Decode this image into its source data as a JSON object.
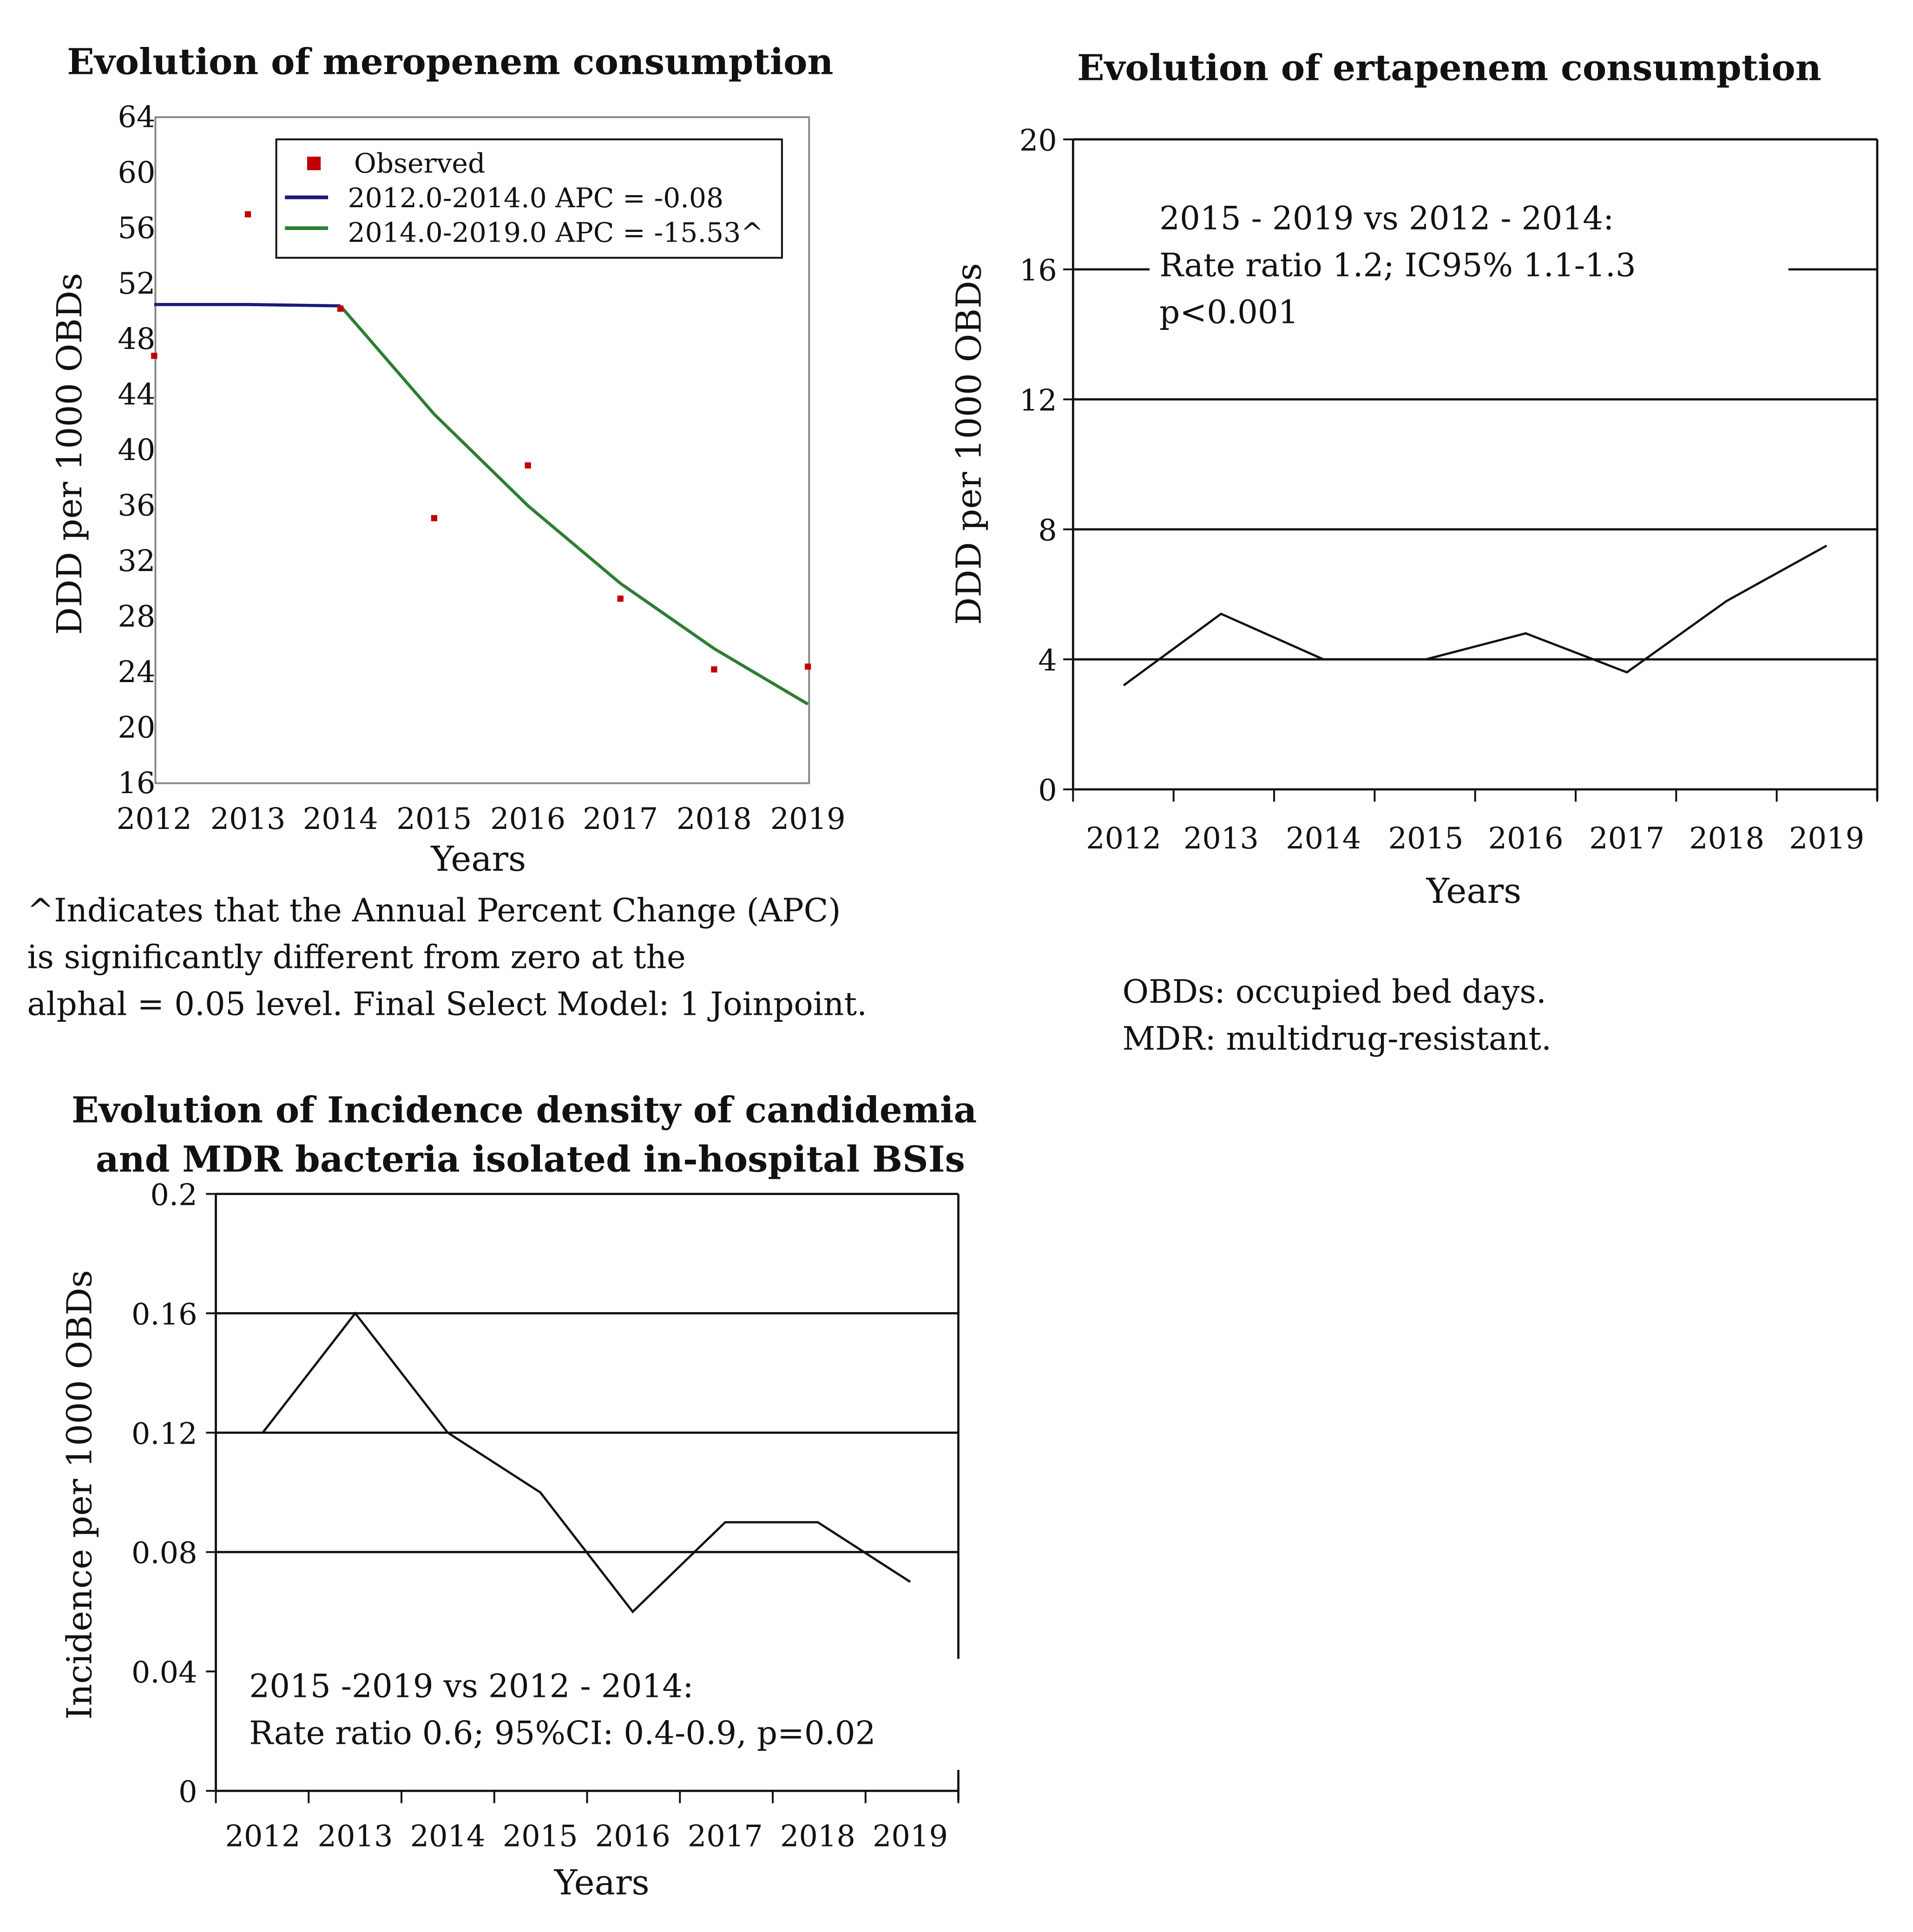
{
  "colors": {
    "observed": "#c00000",
    "segment1": "#1a1a7a",
    "segment2": "#2e7d32",
    "line": "#111111"
  },
  "chart_data": [
    {
      "id": "meropenem",
      "type": "scatter",
      "title": "Evolution of meropenem consumption",
      "xlabel": "Years",
      "ylabel": "DDD per 1000 OBDs",
      "x": [
        2012,
        2013,
        2014,
        2015,
        2016,
        2017,
        2018,
        2019
      ],
      "x_tick_labels": [
        "2012",
        "2013",
        "2014",
        "2015",
        "2016",
        "2017",
        "2018",
        "2019"
      ],
      "ylim": [
        16,
        64
      ],
      "y_ticks": [
        16,
        20,
        24,
        28,
        32,
        36,
        40,
        44,
        48,
        52,
        56,
        60,
        64
      ],
      "y_tick_labels": [
        "16",
        "20",
        "24",
        "28",
        "32",
        "36",
        "40",
        "44",
        "48",
        "52",
        "56",
        "60",
        "64"
      ],
      "series": [
        {
          "name": "Observed",
          "kind": "points",
          "values": [
            46.8,
            57.0,
            50.2,
            35.1,
            38.9,
            29.3,
            24.2,
            24.4
          ]
        },
        {
          "name": "2012.0-2014.0 APC = -0.08",
          "kind": "line",
          "x": [
            2012,
            2013,
            2014
          ],
          "values": [
            50.5,
            50.5,
            50.4
          ]
        },
        {
          "name": "2014.0-2019.0 APC = -15.53^",
          "kind": "line",
          "x": [
            2014,
            2015,
            2016,
            2017,
            2018,
            2019
          ],
          "values": [
            50.4,
            42.6,
            36.0,
            30.4,
            25.7,
            21.7
          ]
        }
      ],
      "legend": {
        "position": "top-right",
        "entries": [
          "Observed",
          "2012.0-2014.0 APC = -0.08",
          "2014.0-2019.0 APC = -15.53^"
        ]
      },
      "footnote": [
        "^Indicates that the Annual Percent Change (APC)",
        "is significantly different from zero at the",
        "alphal = 0.05 level. Final Select Model: 1 Joinpoint."
      ]
    },
    {
      "id": "ertapenem",
      "type": "line",
      "title": "Evolution of ertapenem consumption",
      "xlabel": "Years",
      "ylabel": "DDD per 1000 OBDs",
      "x_tick_labels": [
        "2012",
        "2013",
        "2014",
        "2015",
        "2016",
        "2017",
        "2018",
        "2019"
      ],
      "ylim": [
        0,
        20
      ],
      "y_ticks": [
        0,
        4,
        8,
        12,
        16,
        20
      ],
      "y_tick_labels": [
        "0",
        "4",
        "8",
        "12",
        "16",
        "20"
      ],
      "gridlines": [
        4,
        8,
        12,
        16
      ],
      "series": [
        {
          "name": "Ertapenem",
          "values": [
            3.2,
            5.4,
            4.0,
            4.0,
            4.8,
            3.6,
            5.8,
            7.5
          ]
        }
      ],
      "annotation": [
        "2015 - 2019 vs 2012 - 2014:",
        "Rate ratio 1.2; IC95% 1.1-1.3",
        "p<0.001"
      ]
    },
    {
      "id": "candidemia",
      "type": "line",
      "title": [
        "Evolution of Incidence density of candidemia",
        "and MDR bacteria isolated in-hospital BSIs"
      ],
      "xlabel": "Years",
      "ylabel": "Incidence per 1000 OBDs",
      "x_tick_labels": [
        "2012",
        "2013",
        "2014",
        "2015",
        "2016",
        "2017",
        "2018",
        "2019"
      ],
      "ylim": [
        0,
        0.2
      ],
      "y_ticks": [
        0,
        0.04,
        0.08,
        0.12,
        0.16,
        0.2
      ],
      "y_tick_labels": [
        "0",
        "0.04",
        "0.08",
        "0.12",
        "0.16",
        "0.2"
      ],
      "gridlines": [
        0.08,
        0.12,
        0.16
      ],
      "series": [
        {
          "name": "Incidence",
          "values": [
            0.12,
            0.16,
            0.12,
            0.1,
            0.06,
            0.09,
            0.09,
            0.07
          ]
        }
      ],
      "annotation": [
        "2015 -2019 vs 2012 - 2014:",
        "Rate ratio 0.6; 95%CI: 0.4-0.9, p=0.02"
      ]
    }
  ],
  "abbreviations": [
    "OBDs: occupied bed days.",
    "MDR: multidrug-resistant."
  ]
}
